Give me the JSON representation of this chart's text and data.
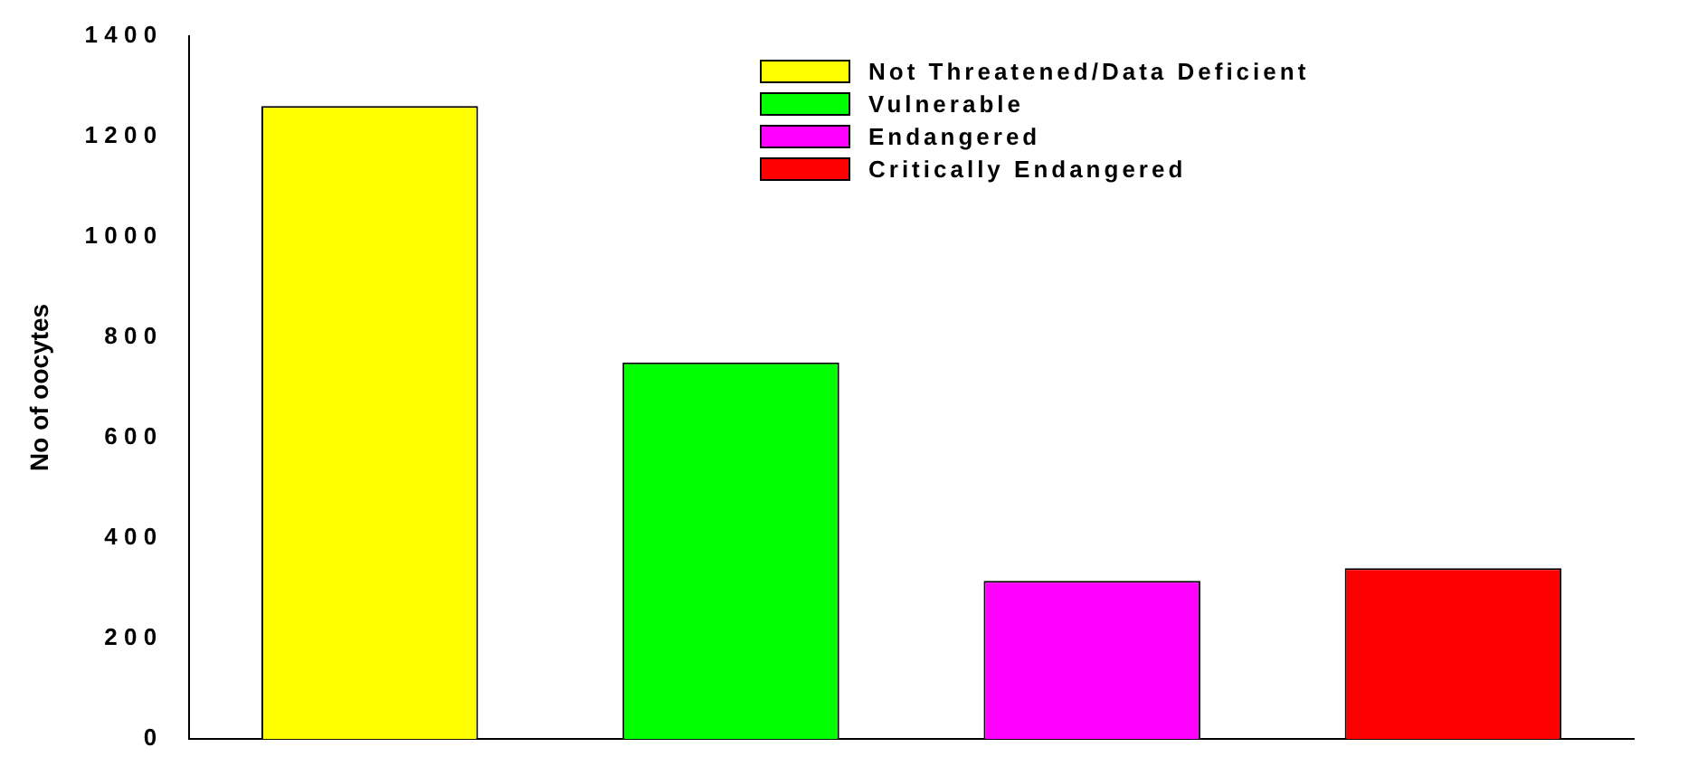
{
  "chart_data": {
    "type": "bar",
    "ylabel": "No of oocytes",
    "categories": [
      null,
      null,
      null,
      null
    ],
    "series": [
      {
        "name": "Not Threatened/Data Deficient",
        "color": "#ffff00",
        "values": [
          1260,
          null,
          null,
          null
        ]
      },
      {
        "name": "Vulnerable",
        "color": "#00ff00",
        "values": [
          null,
          750,
          null,
          null
        ]
      },
      {
        "name": "Endangered",
        "color": "#ff00ff",
        "values": [
          null,
          null,
          315,
          null
        ]
      },
      {
        "name": "Critically Endangered",
        "color": "#ff0000",
        "values": [
          null,
          null,
          null,
          340
        ]
      }
    ],
    "ylim": [
      0,
      1400
    ],
    "yticks": [
      0,
      200,
      400,
      600,
      800,
      1000,
      1200,
      1400
    ],
    "grid": false,
    "legend": "top right"
  }
}
